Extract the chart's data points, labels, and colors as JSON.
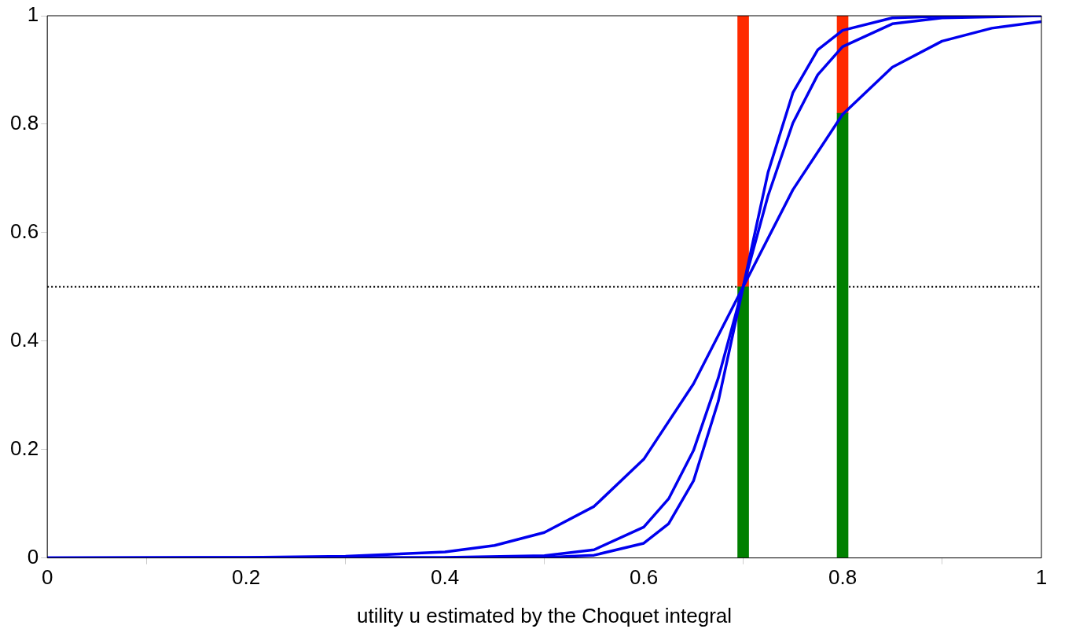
{
  "chart_data": {
    "type": "line",
    "xlabel": "utility u estimated by the Choquet integral",
    "xlim": [
      0,
      1
    ],
    "xticks": [
      0,
      0.2,
      0.4,
      0.6,
      0.8,
      1
    ],
    "ylim": [
      0,
      1
    ],
    "yticks": [
      0,
      0.2,
      0.4,
      0.6,
      0.8,
      1
    ],
    "grid": false,
    "legend": false,
    "marker": "none",
    "line_style": "solid",
    "stacked": true,
    "series": [
      {
        "color": "#0000ee",
        "x": [
          0,
          0.2,
          0.3,
          0.4,
          0.45,
          0.5,
          0.55,
          0.6,
          0.65,
          0.7,
          0.75,
          0.8,
          0.85,
          0.9,
          0.95,
          1
        ],
        "values": [
          0,
          0.001,
          0.003,
          0.011,
          0.023,
          0.047,
          0.095,
          0.182,
          0.321,
          0.5,
          0.679,
          0.818,
          0.905,
          0.953,
          0.977,
          0.989
        ]
      },
      {
        "color": "#0000ee",
        "x": [
          0,
          0.4,
          0.5,
          0.55,
          0.6,
          0.625,
          0.65,
          0.675,
          0.7,
          0.725,
          0.75,
          0.775,
          0.8,
          0.85,
          0.9,
          1
        ],
        "values": [
          0,
          0.001,
          0.004,
          0.015,
          0.057,
          0.109,
          0.198,
          0.332,
          0.5,
          0.668,
          0.802,
          0.891,
          0.943,
          0.985,
          0.996,
          1
        ]
      },
      {
        "color": "#0000ee",
        "x": [
          0.4,
          0.5,
          0.55,
          0.6,
          0.625,
          0.65,
          0.675,
          0.7,
          0.725,
          0.75,
          0.775,
          0.8,
          0.85,
          0.9,
          1
        ],
        "values": [
          0,
          0.001,
          0.005,
          0.027,
          0.063,
          0.142,
          0.289,
          0.5,
          0.711,
          0.858,
          0.937,
          0.973,
          0.996,
          0.999,
          1
        ]
      },
      {
        "type": "bar",
        "color": "#008000",
        "x": [
          0.7,
          0.8
        ],
        "values": [
          0.5,
          0.82
        ]
      },
      {
        "type": "bar",
        "color": "#ff2a00",
        "x": [
          0.7,
          0.8
        ],
        "values": [
          0.5,
          0.18
        ]
      }
    ],
    "ref_lines": [
      {
        "axis": "y",
        "value": 0.5,
        "line_style": "dotted",
        "color": "#000000"
      }
    ]
  }
}
